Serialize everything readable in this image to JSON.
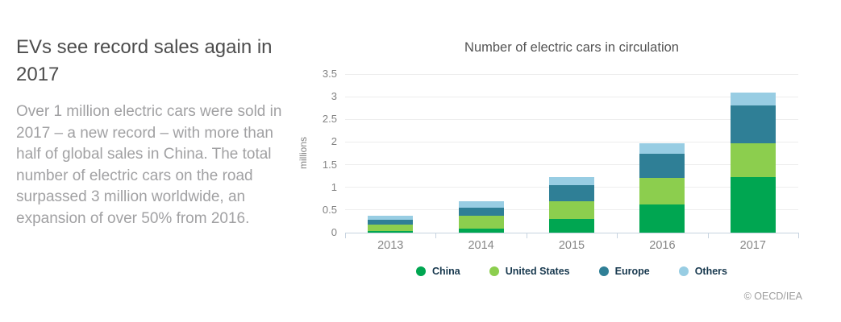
{
  "page": {
    "title": "EVs see record sales again in 2017",
    "body": "Over 1 million electric cars were sold in 2017 – a new record – with more than half of global sales in China. The total number of electric cars on the road surpassed 3 million worldwide, an expansion of over 50% from 2016.",
    "footer_credit": "© OECD/IEA"
  },
  "chart_data": {
    "type": "bar",
    "stacked": true,
    "title": "Number of electric cars in circulation",
    "xlabel": "",
    "ylabel": "millions",
    "categories": [
      "2013",
      "2014",
      "2015",
      "2016",
      "2017"
    ],
    "series": [
      {
        "name": "China",
        "color": "#00a651",
        "values": [
          0.03,
          0.09,
          0.3,
          0.62,
          1.22
        ]
      },
      {
        "name": "United States",
        "color": "#8cce4e",
        "values": [
          0.14,
          0.29,
          0.39,
          0.59,
          0.75
        ]
      },
      {
        "name": "Europe",
        "color": "#2f7f96",
        "values": [
          0.11,
          0.17,
          0.36,
          0.54,
          0.83
        ]
      },
      {
        "name": "Others",
        "color": "#98cde3",
        "values": [
          0.09,
          0.14,
          0.17,
          0.22,
          0.3
        ]
      }
    ],
    "totals": [
      0.37,
      0.69,
      1.22,
      1.97,
      3.1
    ],
    "ylim": [
      0,
      3.5
    ],
    "ytick_step": 0.5,
    "yticks": [
      "0",
      "0.5",
      "1",
      "1.5",
      "2",
      "2.5",
      "3",
      "3.5"
    ],
    "grid": true,
    "legend_position": "bottom",
    "axis_line_color": "#c7d3e0",
    "gridline_color": "#ededed"
  }
}
